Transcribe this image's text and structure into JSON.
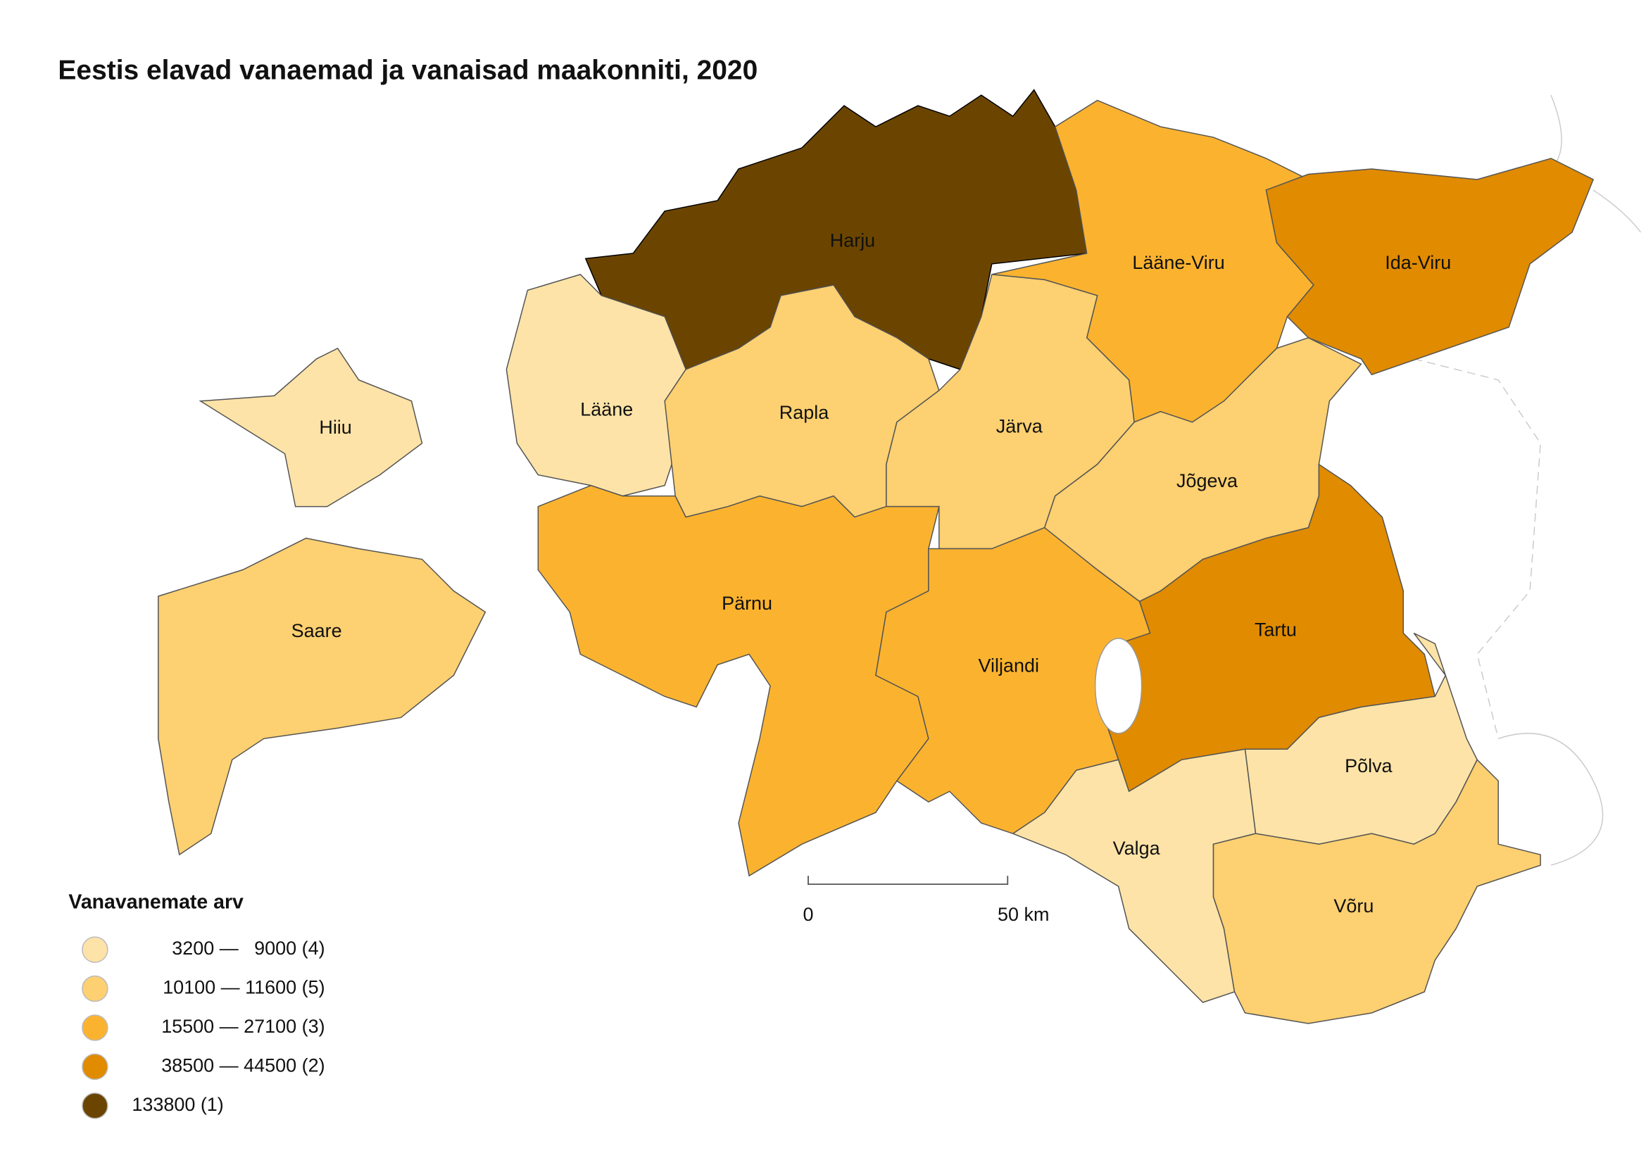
{
  "title": "Eestis elavad vanaemad ja vanaisad maakonniti, 2020",
  "legend": {
    "title": "Vanavanemate arv",
    "items": [
      {
        "label": "3200 —   9000 (4)",
        "color": "#fde3a7"
      },
      {
        "label": "10100 — 11600 (5)",
        "color": "#fdd071"
      },
      {
        "label": "15500 — 27100 (3)",
        "color": "#fbb32f"
      },
      {
        "label": "38500 — 44500 (2)",
        "color": "#e08b00"
      },
      {
        "label": "133800 (1)",
        "color": "#6b4500"
      }
    ]
  },
  "regions": [
    {
      "name": "Harju",
      "color": "#6b4500"
    },
    {
      "name": "Lääne-Viru",
      "color": "#fbb32f"
    },
    {
      "name": "Ida-Viru",
      "color": "#e08b00"
    },
    {
      "name": "Lääne",
      "color": "#fde3a7"
    },
    {
      "name": "Hiiu",
      "color": "#fde3a7"
    },
    {
      "name": "Saare",
      "color": "#fdd071"
    },
    {
      "name": "Rapla",
      "color": "#fdd071"
    },
    {
      "name": "Järva",
      "color": "#fdd071"
    },
    {
      "name": "Jõgeva",
      "color": "#fdd071"
    },
    {
      "name": "Pärnu",
      "color": "#fbb32f"
    },
    {
      "name": "Viljandi",
      "color": "#fbb32f"
    },
    {
      "name": "Tartu",
      "color": "#e08b00"
    },
    {
      "name": "Põlva",
      "color": "#fde3a7"
    },
    {
      "name": "Valga",
      "color": "#fde3a7"
    },
    {
      "name": "Võru",
      "color": "#fdd071"
    }
  ],
  "scale_bar": {
    "start": "0",
    "end": "50 km"
  }
}
